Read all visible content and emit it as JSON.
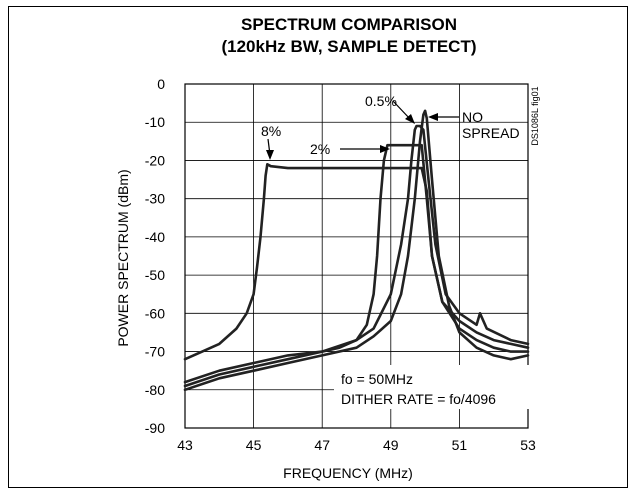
{
  "chart_data": {
    "type": "line",
    "title_lines": [
      "SPECTRUM COMPARISON",
      "(120kHz BW, SAMPLE DETECT)"
    ],
    "xlabel": "FREQUENCY (MHz)",
    "ylabel": "POWER SPECTRUM (dBm)",
    "xlim": [
      43,
      53
    ],
    "ylim": [
      -90,
      0
    ],
    "x_ticks": [
      43,
      45,
      47,
      49,
      51,
      53
    ],
    "y_ticks": [
      0,
      -10,
      -20,
      -30,
      -40,
      -50,
      -60,
      -70,
      -80,
      -90
    ],
    "grid": true,
    "figure_id": "DS1086L fig01",
    "annotations": {
      "fo": "fo = 50MHz",
      "dither": "DITHER RATE = fo/4096"
    },
    "series": [
      {
        "name": "8%",
        "x": [
          43.0,
          43.5,
          44.0,
          44.5,
          44.8,
          45.0,
          45.1,
          45.2,
          45.3,
          45.35,
          45.4,
          45.5,
          46.0,
          47.0,
          48.0,
          49.0,
          49.5,
          49.9,
          50.05,
          50.2,
          50.5,
          51.0,
          51.5,
          52.0,
          52.5,
          53.0
        ],
        "y": [
          -72,
          -70,
          -68,
          -64,
          -60,
          -55,
          -48,
          -40,
          -30,
          -24,
          -21,
          -21.5,
          -22,
          -22,
          -22,
          -22,
          -22,
          -22,
          -28,
          -45,
          -57,
          -62,
          -65,
          -67,
          -68,
          -69
        ]
      },
      {
        "name": "2%",
        "x": [
          43.0,
          44.0,
          45.0,
          46.0,
          47.0,
          47.5,
          48.0,
          48.3,
          48.5,
          48.6,
          48.7,
          48.8,
          48.9,
          49.3,
          49.7,
          49.9,
          50.05,
          50.2,
          50.5,
          51.0,
          51.5,
          52.0,
          52.5,
          53.0
        ],
        "y": [
          -79,
          -76,
          -74,
          -72,
          -70,
          -69,
          -67,
          -63,
          -55,
          -45,
          -30,
          -20,
          -16,
          -16,
          -16,
          -16,
          -30,
          -45,
          -57,
          -64,
          -67,
          -69,
          -70,
          -70
        ]
      },
      {
        "name": "0.5%",
        "x": [
          43.0,
          44.0,
          45.0,
          46.0,
          47.0,
          48.0,
          48.5,
          49.0,
          49.3,
          49.5,
          49.6,
          49.7,
          49.75,
          49.85,
          49.95,
          50.1,
          50.3,
          50.6,
          51.0,
          51.5,
          51.6,
          51.8,
          52.5,
          53.0
        ],
        "y": [
          -78,
          -75,
          -73,
          -71,
          -70,
          -67,
          -64,
          -55,
          -42,
          -30,
          -20,
          -12,
          -11,
          -11,
          -12,
          -25,
          -42,
          -55,
          -60,
          -63,
          -60,
          -64,
          -67,
          -68
        ]
      },
      {
        "name": "NO SPREAD",
        "x": [
          43.0,
          44.0,
          45.0,
          46.0,
          47.0,
          48.0,
          48.5,
          49.0,
          49.3,
          49.5,
          49.7,
          49.85,
          49.95,
          50.0,
          50.05,
          50.2,
          50.4,
          50.7,
          51.0,
          51.5,
          52.0,
          52.5,
          53.0
        ],
        "y": [
          -80,
          -77,
          -75,
          -73,
          -71,
          -69,
          -66,
          -62,
          -55,
          -45,
          -30,
          -15,
          -8,
          -7,
          -9,
          -25,
          -45,
          -58,
          -65,
          -69,
          -71,
          -72,
          -71
        ]
      }
    ]
  }
}
